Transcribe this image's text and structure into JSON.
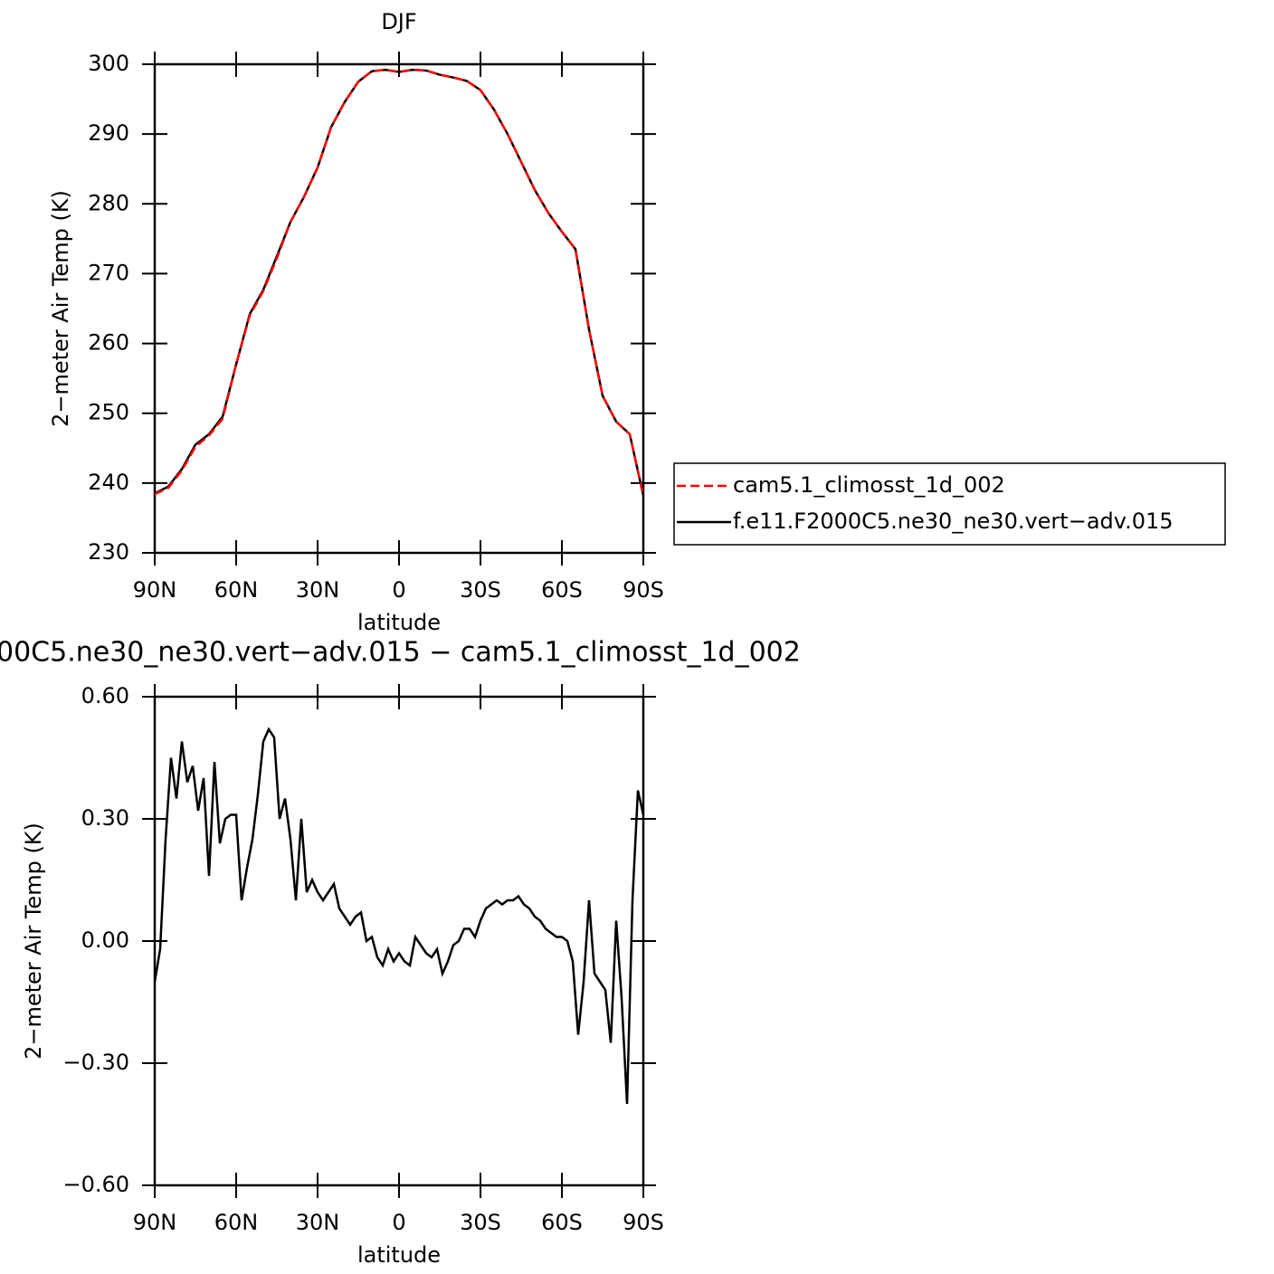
{
  "chart_data": [
    {
      "type": "line",
      "title": "DJF",
      "ylabel": "2−meter Air Temp (K)",
      "xlabel": "latitude",
      "x": [
        90,
        85,
        80,
        75,
        70,
        65,
        60,
        55,
        50,
        45,
        40,
        35,
        30,
        25,
        20,
        15,
        10,
        5,
        0,
        -5,
        -10,
        -15,
        -20,
        -25,
        -30,
        -35,
        -40,
        -45,
        -50,
        -55,
        -60,
        -65,
        -70,
        -75,
        -80,
        -85,
        -90
      ],
      "series": [
        {
          "name": "cam5.1_climosst_1d_002",
          "color": "#ff0000",
          "dash": true,
          "values": [
            238.4,
            239.3,
            241.8,
            245.2,
            246.8,
            249.2,
            257,
            264,
            267.5,
            272.2,
            277.4,
            281,
            285.2,
            291,
            294.6,
            297.5,
            299,
            299.2,
            298.9,
            299.2,
            299.1,
            298.5,
            298.1,
            297.6,
            296.3,
            293.5,
            290,
            286,
            282,
            278.7,
            276,
            273.5,
            262,
            252.5,
            248.8,
            247,
            238.2
          ]
        },
        {
          "name": "f.e11.F2000C5.ne30_ne30.vert−adv.015",
          "color": "#000000",
          "dash": false,
          "values": [
            238.5,
            239.5,
            242,
            245.5,
            247,
            249.5,
            257,
            264.2,
            267.7,
            272.5,
            277.4,
            281,
            285.2,
            291,
            294.6,
            297.5,
            299,
            299.2,
            298.9,
            299.2,
            299.1,
            298.5,
            298.1,
            297.6,
            296.3,
            293.5,
            290,
            286,
            282,
            278.7,
            276,
            273.5,
            262,
            252.5,
            248.8,
            247,
            238.2
          ]
        }
      ],
      "xlim": [
        90,
        -90
      ],
      "xticks": [
        {
          "value": 90,
          "label": "90N"
        },
        {
          "value": 60,
          "label": "60N"
        },
        {
          "value": 30,
          "label": "30N"
        },
        0,
        {
          "value": -30,
          "label": "30S"
        },
        {
          "value": -60,
          "label": "60S"
        },
        {
          "value": -90,
          "label": "90S"
        }
      ],
      "ylim": [
        230,
        300
      ],
      "yticks": [
        230,
        240,
        250,
        260,
        270,
        280,
        290,
        300
      ],
      "legend": "right"
    },
    {
      "type": "line",
      "title": "00C5.ne30_ne30.vert−adv.015 − cam5.1_climosst_1d_002",
      "ylabel": "2−meter Air Temp (K)",
      "xlabel": "latitude",
      "x": [
        90,
        88,
        86,
        84,
        82,
        80,
        78,
        76,
        74,
        72,
        70,
        68,
        66,
        64,
        62,
        60,
        58,
        56,
        54,
        52,
        50,
        48,
        46,
        44,
        42,
        40,
        38,
        36,
        34,
        32,
        30,
        28,
        26,
        24,
        22,
        20,
        18,
        16,
        14,
        12,
        10,
        8,
        6,
        4,
        2,
        0,
        -2,
        -4,
        -6,
        -8,
        -10,
        -12,
        -14,
        -16,
        -18,
        -20,
        -22,
        -24,
        -26,
        -28,
        -30,
        -32,
        -34,
        -36,
        -38,
        -40,
        -42,
        -44,
        -46,
        -48,
        -50,
        -52,
        -54,
        -56,
        -58,
        -60,
        -62,
        -64,
        -66,
        -68,
        -70,
        -72,
        -74,
        -76,
        -78,
        -80,
        -82,
        -84,
        -86,
        -88,
        -90
      ],
      "series": [
        {
          "name": "f.e11.F2000C5.ne30_ne30.vert−adv.015",
          "color": "#000000",
          "dash": false,
          "values": [
            -0.1,
            -0.02,
            0.25,
            0.45,
            0.35,
            0.49,
            0.39,
            0.43,
            0.32,
            0.4,
            0.16,
            0.44,
            0.24,
            0.3,
            0.31,
            0.31,
            0.1,
            0.18,
            0.25,
            0.36,
            0.49,
            0.52,
            0.5,
            0.3,
            0.35,
            0.25,
            0.1,
            0.3,
            0.12,
            0.15,
            0.12,
            0.1,
            0.12,
            0.14,
            0.08,
            0.06,
            0.04,
            0.06,
            0.07,
            0,
            0.01,
            -0.04,
            -0.06,
            -0.02,
            -0.05,
            -0.03,
            -0.05,
            -0.06,
            0.01,
            -0.01,
            -0.03,
            -0.04,
            -0.02,
            -0.08,
            -0.05,
            -0.01,
            0,
            0.03,
            0.03,
            0.01,
            0.05,
            0.08,
            0.09,
            0.1,
            0.09,
            0.1,
            0.1,
            0.11,
            0.09,
            0.08,
            0.06,
            0.05,
            0.03,
            0.02,
            0.01,
            0.01,
            0,
            -0.05,
            -0.23,
            -0.1,
            0.1,
            -0.08,
            -0.1,
            -0.12,
            -0.25,
            0.05,
            -0.14,
            -0.4,
            0.1,
            0.37,
            0.31
          ]
        }
      ],
      "xlim": [
        90,
        -90
      ],
      "xticks": [
        {
          "value": 90,
          "label": "90N"
        },
        {
          "value": 60,
          "label": "60N"
        },
        {
          "value": 30,
          "label": "30N"
        },
        0,
        {
          "value": -30,
          "label": "30S"
        },
        {
          "value": -60,
          "label": "60S"
        },
        {
          "value": -90,
          "label": "90S"
        }
      ],
      "ylim": [
        -0.6,
        0.6
      ],
      "yticks": [
        {
          "value": -0.6,
          "label": "−0.60"
        },
        {
          "value": -0.3,
          "label": "−0.30"
        },
        {
          "value": 0,
          "label": "0.00"
        },
        {
          "value": 0.3,
          "label": "0.30"
        },
        {
          "value": 0.6,
          "label": "0.60"
        }
      ]
    }
  ]
}
